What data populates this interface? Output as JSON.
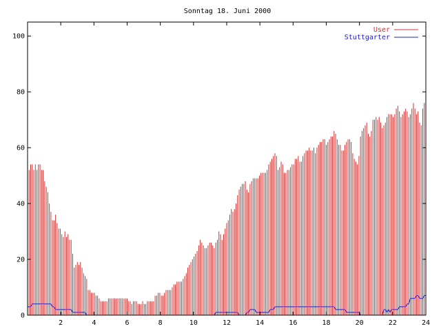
{
  "chart_data": {
    "type": "bar",
    "title": "Sonntag 18. Juni 2000",
    "xlabel": "",
    "ylabel": "",
    "xlim": [
      0,
      24
    ],
    "ylim": [
      0,
      105
    ],
    "x_ticks": [
      2,
      4,
      6,
      8,
      10,
      12,
      14,
      16,
      18,
      20,
      22,
      24
    ],
    "y_ticks": [
      0,
      20,
      40,
      60,
      80,
      100
    ],
    "grid": false,
    "legend_position": "top-right",
    "sample_interval_hours": 0.0833,
    "series": [
      {
        "name": "User",
        "style": "impulses",
        "color": "#d03030",
        "values": [
          55,
          52,
          54,
          54,
          52,
          54,
          52,
          54,
          54,
          52,
          52,
          48,
          46,
          44,
          40,
          37,
          34,
          34,
          36,
          33,
          31,
          31,
          29,
          28,
          30,
          28,
          29,
          27,
          27,
          22,
          17,
          18,
          19,
          18,
          19,
          17,
          15,
          14,
          13,
          9,
          9,
          8,
          8,
          8,
          7,
          7,
          6,
          5,
          5,
          5,
          5,
          5,
          6,
          6,
          6,
          6,
          6,
          6,
          6,
          6,
          6,
          6,
          6,
          6,
          6,
          5,
          5,
          4,
          5,
          5,
          5,
          4,
          4,
          4,
          5,
          4,
          4,
          5,
          5,
          5,
          5,
          5,
          7,
          7,
          8,
          8,
          7,
          7,
          8,
          9,
          9,
          9,
          9,
          10,
          11,
          11,
          12,
          12,
          12,
          12,
          13,
          14,
          15,
          17,
          18,
          19,
          20,
          21,
          22,
          23,
          25,
          27,
          26,
          25,
          24,
          24,
          25,
          26,
          26,
          25,
          24,
          26,
          27,
          30,
          29,
          27,
          29,
          31,
          33,
          34,
          36,
          38,
          37,
          38,
          40,
          43,
          45,
          46,
          47,
          47,
          48,
          45,
          44,
          47,
          48,
          49,
          49,
          49,
          49,
          50,
          51,
          51,
          51,
          51,
          52,
          54,
          55,
          56,
          57,
          58,
          57,
          52,
          53,
          55,
          54,
          51,
          51,
          52,
          52,
          53,
          54,
          54,
          56,
          56,
          57,
          55,
          55,
          57,
          58,
          59,
          59,
          60,
          59,
          59,
          60,
          58,
          60,
          61,
          62,
          62,
          63,
          63,
          61,
          62,
          63,
          64,
          64,
          66,
          65,
          63,
          61,
          61,
          59,
          59,
          61,
          62,
          63,
          63,
          62,
          58,
          56,
          55,
          54,
          57,
          64,
          66,
          67,
          68,
          69,
          65,
          64,
          66,
          70,
          70,
          71,
          70,
          71,
          69,
          67,
          68,
          69,
          71,
          72,
          72,
          72,
          71,
          72,
          74,
          75,
          73,
          71,
          72,
          73,
          74,
          73,
          71,
          72,
          74,
          76,
          74,
          72,
          73,
          69,
          68,
          74,
          76,
          77
        ],
        "note_color_role": "impulses"
      },
      {
        "name": "Stuttgarter",
        "style": "lines",
        "color": "#2020c8",
        "values": [
          3,
          3,
          3,
          4,
          4,
          4,
          4,
          4,
          4,
          4,
          4,
          4,
          4,
          4,
          4,
          4,
          3,
          3,
          2,
          2,
          2,
          2,
          2,
          2,
          2,
          2,
          2,
          2,
          2,
          1,
          1,
          1,
          1,
          1,
          1,
          1,
          1,
          1,
          0,
          0,
          0,
          0,
          0,
          0,
          0,
          0,
          0,
          0,
          0,
          0,
          0,
          0,
          0,
          0,
          0,
          0,
          0,
          0,
          0,
          0,
          0,
          0,
          0,
          0,
          0,
          0,
          0,
          0,
          0,
          0,
          0,
          0,
          0,
          0,
          0,
          0,
          0,
          0,
          0,
          0,
          0,
          0,
          0,
          0,
          0,
          0,
          0,
          0,
          0,
          0,
          0,
          0,
          0,
          0,
          0,
          0,
          0,
          0,
          0,
          0,
          0,
          0,
          0,
          0,
          0,
          0,
          0,
          0,
          0,
          0,
          0,
          0,
          0,
          0,
          0,
          0,
          0,
          0,
          0,
          0,
          0,
          1,
          1,
          1,
          1,
          1,
          1,
          1,
          1,
          1,
          1,
          1,
          1,
          1,
          1,
          1,
          0,
          0,
          0,
          0,
          0,
          1,
          1,
          2,
          2,
          2,
          2,
          1,
          1,
          1,
          1,
          1,
          1,
          1,
          1,
          1,
          2,
          2,
          2,
          3,
          3,
          3,
          3,
          3,
          3,
          3,
          3,
          3,
          3,
          3,
          3,
          3,
          3,
          3,
          3,
          3,
          3,
          3,
          3,
          3,
          3,
          3,
          3,
          3,
          3,
          3,
          3,
          3,
          3,
          3,
          3,
          3,
          3,
          3,
          3,
          3,
          3,
          3,
          2,
          2,
          2,
          2,
          2,
          2,
          2,
          1,
          1,
          1,
          1,
          1,
          1,
          1,
          1,
          1,
          0,
          0,
          0,
          0,
          0,
          0,
          0,
          0,
          0,
          0,
          0,
          0,
          0,
          0,
          0,
          2,
          2,
          1,
          2,
          1,
          2,
          2,
          2,
          2,
          2,
          3,
          3,
          3,
          3,
          3,
          4,
          4,
          6,
          6,
          6,
          6,
          7,
          7,
          6,
          6,
          6,
          7,
          7
        ]
      }
    ]
  }
}
